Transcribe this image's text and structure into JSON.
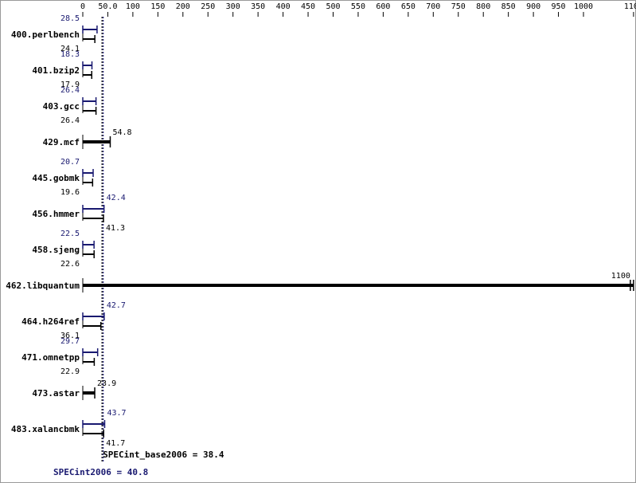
{
  "chart_data": {
    "type": "bar",
    "title": "",
    "xlabel": "",
    "ylabel": "",
    "xlim": [
      0,
      1100
    ],
    "x_ticks": [
      0,
      50,
      100,
      150,
      200,
      250,
      300,
      350,
      400,
      450,
      500,
      550,
      600,
      650,
      700,
      750,
      800,
      850,
      900,
      950,
      1000,
      1100
    ],
    "x_tick_labels": [
      "0",
      "50.0",
      "100",
      "150",
      "200",
      "250",
      "300",
      "350",
      "400",
      "450",
      "500",
      "550",
      "600",
      "650",
      "700",
      "750",
      "800",
      "850",
      "900",
      "950",
      "1000",
      "1100"
    ],
    "categories": [
      "400.perlbench",
      "401.bzip2",
      "403.gcc",
      "429.mcf",
      "445.gobmk",
      "456.hmmer",
      "458.sjeng",
      "462.libquantum",
      "464.h264ref",
      "471.omnetpp",
      "473.astar",
      "483.xalancbmk"
    ],
    "series": [
      {
        "role": "peak",
        "values": [
          28.5,
          18.3,
          26.4,
          null,
          20.7,
          42.4,
          22.5,
          null,
          42.7,
          29.7,
          null,
          43.7
        ],
        "labels": [
          "28.5",
          "18.3",
          "26.4",
          "",
          "20.7",
          "42.4",
          "22.5",
          "",
          "42.7",
          "29.7",
          "",
          "43.7"
        ]
      },
      {
        "role": "base",
        "values": [
          24.1,
          17.9,
          26.4,
          54.8,
          19.6,
          41.3,
          22.6,
          1100,
          36.1,
          22.9,
          23.9,
          41.7
        ],
        "labels": [
          "24.1",
          "17.9",
          "26.4",
          "54.8",
          "19.6",
          "41.3",
          "22.6",
          "1100",
          "36.1",
          "22.9",
          "23.9",
          "41.7"
        ]
      }
    ],
    "base_mean": {
      "label": "SPECint_base2006 = 38.4",
      "value": 38.4
    },
    "peak_mean": {
      "label": "SPECint2006 = 40.8",
      "value": 40.8
    },
    "colors": {
      "base": "#000000",
      "peak": "#191970",
      "background": "#ffffff",
      "frame": "#999999"
    }
  }
}
